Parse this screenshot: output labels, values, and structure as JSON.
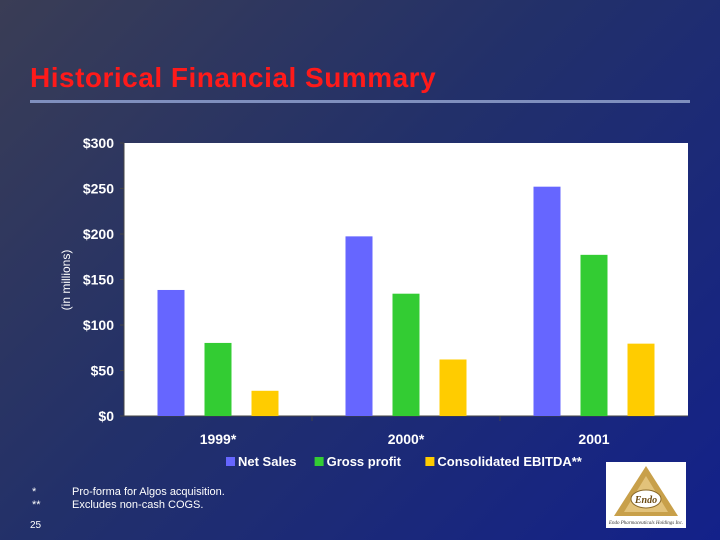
{
  "slide": {
    "title": "Historical Financial Summary",
    "footnotes": [
      {
        "mark": "*",
        "text": "Pro-forma for Algos acquisition."
      },
      {
        "mark": "**",
        "text": "Excludes non-cash COGS."
      }
    ],
    "page_number": "25",
    "logo": {
      "name": "Endo",
      "subtitle": "Endo Pharmaceuticals Holdings Inc."
    }
  },
  "chart_data": {
    "type": "bar",
    "title": "",
    "xlabel": "",
    "ylabel": "(in millions)",
    "categories": [
      "1999*",
      "2000*",
      "2001"
    ],
    "ylim": [
      0,
      300
    ],
    "yticks": [
      0,
      50,
      100,
      150,
      200,
      250,
      300
    ],
    "ytick_labels": [
      "$0",
      "$50",
      "$100",
      "$150",
      "$200",
      "$250",
      "$300"
    ],
    "grid": false,
    "legend_position": "bottom",
    "series": [
      {
        "name": "Net Sales",
        "color": "#6666ff",
        "values": [
          138.5,
          197.4,
          252.0
        ],
        "labels": [
          "$138.5",
          "$197.4",
          "$252.0"
        ]
      },
      {
        "name": "Gross profit",
        "color": "#33cc33",
        "values": [
          80.3,
          134.4,
          177.1
        ],
        "labels": [
          "$80.3",
          "$134.4",
          "$177.1"
        ]
      },
      {
        "name": "Consolidated EBITDA**",
        "color": "#ffcc00",
        "values": [
          27.7,
          62.1,
          79.5
        ],
        "labels": [
          "$27.7",
          "$62.1",
          "$79.5"
        ]
      }
    ]
  }
}
